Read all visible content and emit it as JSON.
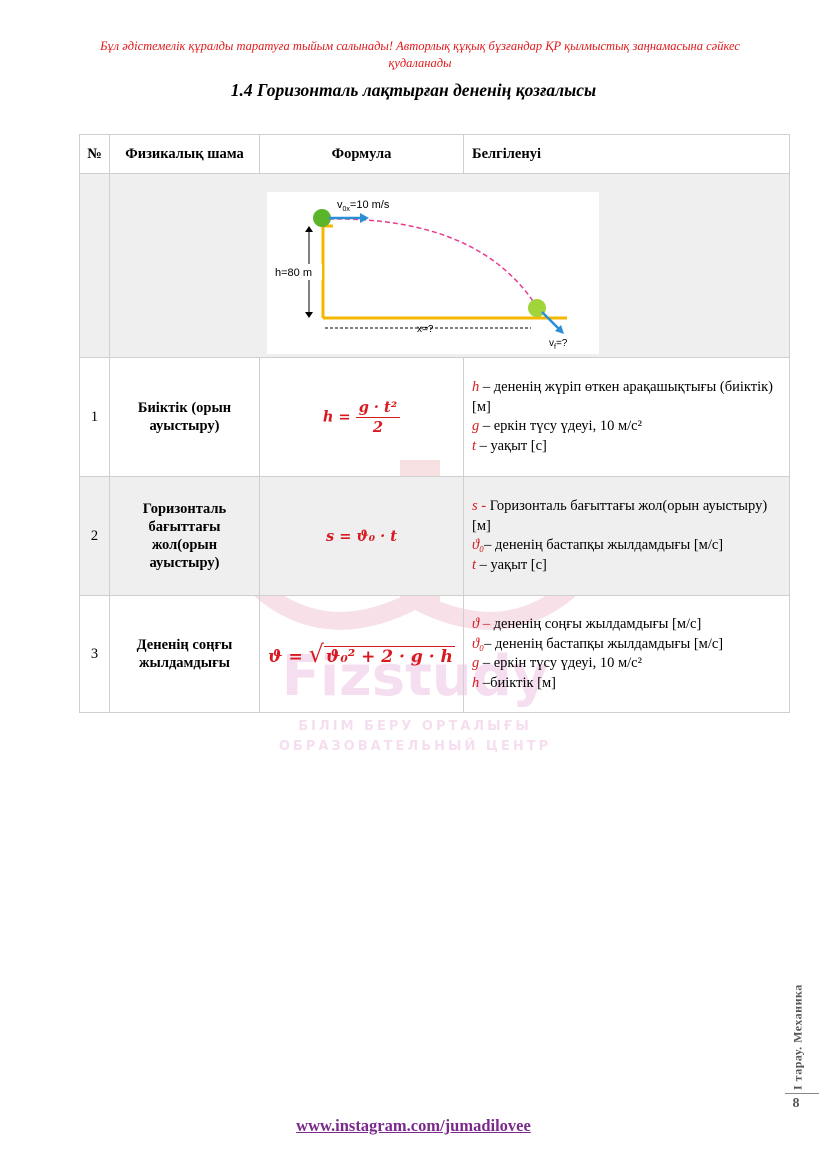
{
  "notice": "Бұл әдістемелік құралды таратуға тыйым салынады! Авторлық құқық бұзғандар ҚР қылмыстық заңнамасына сәйкес қудаланады",
  "title": "1.4 Горизонталь лақтырған дененің қозғалысы",
  "table": {
    "headers": [
      "№",
      "Физикалық шама",
      "Формула",
      "Белгіленуі"
    ],
    "figure": {
      "v0_label": "v",
      "v0_sub": "0x",
      "v0_value": "=10 m/s",
      "h_label": "h=80 m",
      "x_label": "x=?",
      "vf_label": "v",
      "vf_sub": "f",
      "vf_value": "=?"
    },
    "rows": [
      {
        "num": "1",
        "quantity": "Биіктік (орын ауыстыру)",
        "formula": {
          "lhs": "h =",
          "num": "g · t²",
          "den": "2"
        },
        "desc": [
          {
            "sym": "h",
            "text": " – дененің жүріп өткен арақашықтығы (биіктік) [м]"
          },
          {
            "sym": "g",
            "text": " – еркін түсу үдеуі, 10 м/с²"
          },
          {
            "sym": "t",
            "text": " – уақыт [с]"
          }
        ]
      },
      {
        "num": "2",
        "quantity": "Горизонталь бағыттағы жол(орын ауыстыру)",
        "formula": {
          "text": "s = ϑ₀ · t"
        },
        "desc": [
          {
            "sym": "s -",
            "text": " Горизонталь бағыттағы жол(орын ауыстыру)  [м]"
          },
          {
            "sym": "ϑ₀",
            "text": "– дененің бастапқы жылдамдығы [м/с]"
          },
          {
            "sym": "t",
            "text": " – уақыт [с]"
          }
        ]
      },
      {
        "num": "3",
        "quantity": "Дененің соңғы жылдамдығы",
        "formula": {
          "lhs": "ϑ =",
          "radicand": "ϑ₀² + 2 · g · h"
        },
        "desc": [
          {
            "sym": "ϑ –",
            "text": " дененің соңғы жылдамдығы [м/с]"
          },
          {
            "sym": "ϑ₀",
            "text": "– дененің бастапқы жылдамдығы [м/с]"
          },
          {
            "sym": "g",
            "text": " – еркін түсу үдеуі, 10 м/с²"
          },
          {
            "sym": "h",
            "text": " –биіктік [м]"
          }
        ]
      }
    ]
  },
  "watermark": {
    "brand": "Fizstudy",
    "line1": "БІЛІМ БЕРУ ОРТАЛЫҒЫ",
    "line2": "ОБРАЗОВАТЕЛЬНЫЙ ЦЕНТР"
  },
  "side_label": "I тарау. Механика",
  "page_number": "8",
  "footer_link": "www.instagram.com/jumadilovee",
  "colors": {
    "notice": "#e0191c",
    "formula": "#d81920",
    "link": "#7a2a8a",
    "ball": "#5ab52a",
    "ground": "#f5b800",
    "arrow": "#2a8fd6",
    "trajectory": "#e83d8f"
  }
}
